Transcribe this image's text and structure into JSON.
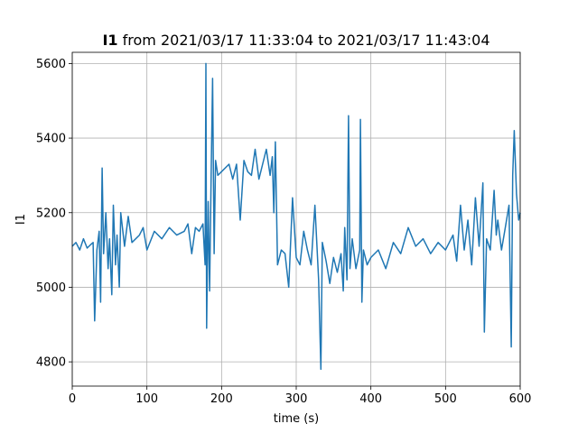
{
  "chart_data": {
    "type": "line",
    "title_bold": "I1",
    "title_rest": " from 2021/03/17 11:33:04 to 2021/03/17 11:43:04",
    "xlabel": "time (s)",
    "ylabel": "I1",
    "xlim": [
      0,
      600
    ],
    "ylim": [
      4735,
      5630
    ],
    "grid": true,
    "x_ticks": [
      0,
      100,
      200,
      300,
      400,
      500,
      600
    ],
    "x_tick_labels": [
      "0",
      "100",
      "200",
      "300",
      "400",
      "500",
      "600"
    ],
    "y_ticks": [
      4800,
      5000,
      5200,
      5400,
      5600
    ],
    "y_tick_labels": [
      "4800",
      "5000",
      "5200",
      "5400",
      "5600"
    ],
    "series": [
      {
        "color": "#1f77b4",
        "x": [
          0,
          5,
          10,
          15,
          20,
          25,
          28,
          30,
          33,
          36,
          38,
          40,
          42,
          45,
          48,
          50,
          53,
          55,
          58,
          60,
          63,
          65,
          70,
          75,
          80,
          90,
          95,
          100,
          110,
          120,
          130,
          140,
          150,
          155,
          160,
          165,
          170,
          175,
          178,
          179,
          180,
          182,
          184,
          186,
          188,
          190,
          192,
          195,
          200,
          210,
          215,
          220,
          225,
          230,
          235,
          240,
          245,
          250,
          255,
          260,
          265,
          268,
          270,
          272,
          275,
          280,
          285,
          290,
          295,
          300,
          305,
          310,
          315,
          320,
          325,
          330,
          333,
          335,
          340,
          345,
          350,
          355,
          360,
          363,
          365,
          368,
          370,
          372,
          375,
          380,
          385,
          386,
          388,
          390,
          395,
          400,
          410,
          420,
          430,
          440,
          450,
          460,
          470,
          480,
          490,
          500,
          510,
          515,
          520,
          525,
          530,
          535,
          540,
          545,
          550,
          552,
          555,
          560,
          565,
          568,
          570,
          575,
          580,
          585,
          588,
          590,
          592,
          595,
          598,
          600
        ],
        "y": [
          5110,
          5120,
          5100,
          5130,
          5105,
          5115,
          5120,
          4910,
          5100,
          5150,
          4960,
          5320,
          5090,
          5200,
          5050,
          5130,
          4980,
          5220,
          5060,
          5140,
          5000,
          5200,
          5110,
          5190,
          5120,
          5140,
          5160,
          5100,
          5150,
          5130,
          5160,
          5140,
          5150,
          5170,
          5090,
          5160,
          5150,
          5170,
          5060,
          5600,
          4890,
          5230,
          4990,
          5300,
          5560,
          5090,
          5340,
          5300,
          5310,
          5330,
          5290,
          5330,
          5180,
          5340,
          5310,
          5300,
          5370,
          5290,
          5330,
          5370,
          5300,
          5350,
          5200,
          5390,
          5060,
          5100,
          5090,
          5000,
          5240,
          5080,
          5060,
          5150,
          5100,
          5060,
          5220,
          5020,
          4780,
          5120,
          5070,
          5010,
          5080,
          5040,
          5090,
          4990,
          5160,
          5020,
          5460,
          5050,
          5130,
          5050,
          5100,
          5450,
          4960,
          5100,
          5060,
          5080,
          5100,
          5050,
          5120,
          5090,
          5160,
          5110,
          5130,
          5090,
          5120,
          5100,
          5140,
          5070,
          5220,
          5100,
          5180,
          5060,
          5240,
          5110,
          5280,
          4880,
          5130,
          5100,
          5260,
          5140,
          5180,
          5100,
          5160,
          5220,
          4840,
          5300,
          5420,
          5250,
          5180,
          5200
        ]
      }
    ]
  }
}
